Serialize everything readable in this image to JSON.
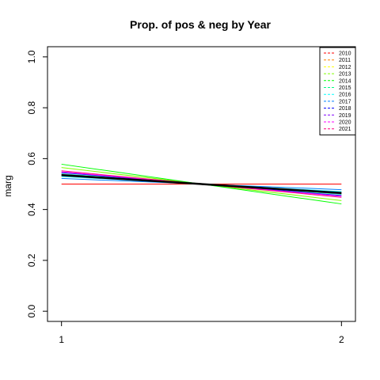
{
  "chart_data": {
    "type": "line",
    "title": "Prop. of pos & neg by Year",
    "xlabel": "",
    "ylabel": "marg",
    "x": [
      1,
      2
    ],
    "x_tick_labels": [
      "1",
      "2"
    ],
    "xlim": [
      0.95,
      2.05
    ],
    "ylim": [
      -0.04,
      1.04
    ],
    "y_ticks": [
      0.0,
      0.2,
      0.4,
      0.6,
      0.8,
      1.0
    ],
    "y_tick_labels": [
      "0.0",
      "0.2",
      "0.4",
      "0.6",
      "0.8",
      "1.0"
    ],
    "grid": false,
    "legend_position": "top-right",
    "series": [
      {
        "name": "2010",
        "color": "#ff0000",
        "values": [
          0.5,
          0.5
        ]
      },
      {
        "name": "2011",
        "color": "#ff8000",
        "values": [
          0.535,
          0.465
        ]
      },
      {
        "name": "2012",
        "color": "#ffff00",
        "values": [
          0.537,
          0.463
        ]
      },
      {
        "name": "2013",
        "color": "#80ff00",
        "values": [
          0.565,
          0.435
        ]
      },
      {
        "name": "2014",
        "color": "#00ff00",
        "values": [
          0.578,
          0.422
        ]
      },
      {
        "name": "2015",
        "color": "#00ff80",
        "values": [
          0.54,
          0.46
        ]
      },
      {
        "name": "2016",
        "color": "#00ffff",
        "values": [
          0.53,
          0.47
        ]
      },
      {
        "name": "2017",
        "color": "#0080ff",
        "values": [
          0.522,
          0.478
        ]
      },
      {
        "name": "2018",
        "color": "#0000ff",
        "values": [
          0.545,
          0.455
        ]
      },
      {
        "name": "2019",
        "color": "#8000ff",
        "values": [
          0.538,
          0.462
        ]
      },
      {
        "name": "2020",
        "color": "#ff00ff",
        "values": [
          0.548,
          0.452
        ]
      },
      {
        "name": "2021",
        "color": "#ff0080",
        "values": [
          0.552,
          0.448
        ]
      }
    ],
    "reference_line": {
      "color": "#000000",
      "values": [
        0.535,
        0.465
      ]
    }
  }
}
